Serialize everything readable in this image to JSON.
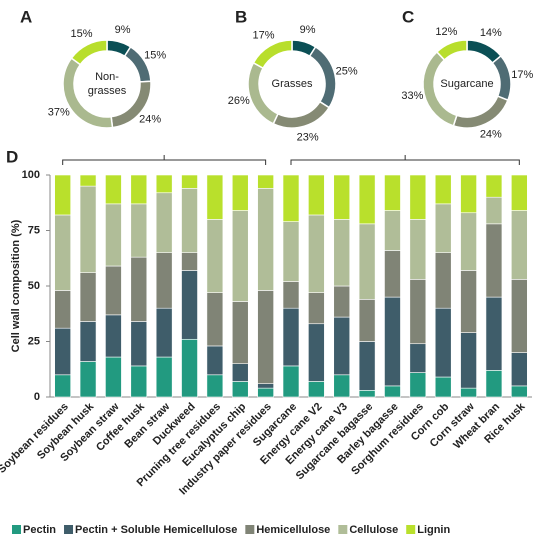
{
  "chart_data": [
    {
      "type": "pie",
      "title": "A",
      "center_label": [
        "Non-",
        "grasses"
      ],
      "values": [
        9,
        15,
        24,
        37,
        15
      ],
      "value_labels": [
        "9%",
        "15%",
        "24%",
        "37%",
        "15%"
      ],
      "colors": [
        "#0b4f55",
        "#4f6c74",
        "#858a74",
        "#aab98f",
        "#b8de2c"
      ]
    },
    {
      "type": "pie",
      "title": "B",
      "center_label": [
        "Grasses"
      ],
      "values": [
        9,
        25,
        23,
        26,
        17
      ],
      "value_labels": [
        "9%",
        "25%",
        "23%",
        "26%",
        "17%"
      ],
      "colors": [
        "#0b4f55",
        "#4f6c74",
        "#858a74",
        "#aab98f",
        "#b8de2c"
      ]
    },
    {
      "type": "pie",
      "title": "C",
      "center_label": [
        "Sugarcane"
      ],
      "values": [
        14,
        17,
        24,
        33,
        12
      ],
      "value_labels": [
        "14%",
        "17%",
        "24%",
        "33%",
        "12%"
      ],
      "colors": [
        "#0b4f55",
        "#4f6c74",
        "#858a74",
        "#aab98f",
        "#b8de2c"
      ]
    },
    {
      "type": "bar",
      "stacked": true,
      "title": "D",
      "ylabel": "Cell wall composition (%)",
      "legend": "bottom",
      "ylim": [
        0,
        100
      ],
      "yticks": [
        0,
        25,
        50,
        75,
        100
      ],
      "categories": [
        "Soybean residues",
        "Soybean husk",
        "Soybean straw",
        "Coffee husk",
        "Bean straw",
        "Duckweed",
        "Pruning tree residues",
        "Eucalyptus chip",
        "Industry paper residues",
        "Sugarcane",
        "Energy cane V2",
        "Energy cane V3",
        "Sugarcane bagasse",
        "Barley bagasse",
        "Sorghum residues",
        "Corn cob",
        "Corn straw",
        "Wheat bran",
        "Rice husk"
      ],
      "series": [
        {
          "name": "Pectin",
          "color": "#229a80",
          "values": [
            10,
            16,
            18,
            14,
            18,
            26,
            10,
            7,
            4,
            14,
            7,
            10,
            3,
            5,
            11,
            9,
            4,
            12,
            5
          ]
        },
        {
          "name": "Pectin + Soluble Hemicellulose",
          "color": "#3f5d6a",
          "values": [
            21,
            18,
            19,
            20,
            22,
            31,
            13,
            8,
            2,
            26,
            26,
            26,
            22,
            40,
            13,
            31,
            25,
            33,
            15
          ]
        },
        {
          "name": "Hemicellulose",
          "color": "#808476",
          "values": [
            17,
            22,
            22,
            29,
            25,
            8,
            24,
            28,
            42,
            12,
            14,
            14,
            19,
            21,
            29,
            25,
            28,
            33,
            33
          ]
        },
        {
          "name": "Cellulose",
          "color": "#b0bd98",
          "values": [
            34,
            39,
            28,
            24,
            27,
            29,
            33,
            41,
            46,
            27,
            35,
            30,
            34,
            18,
            27,
            22,
            26,
            12,
            31
          ]
        },
        {
          "name": "Lignin",
          "color": "#b9e02c",
          "values": [
            18,
            5,
            13,
            13,
            8,
            6,
            20,
            16,
            6,
            21,
            18,
            20,
            22,
            16,
            20,
            13,
            17,
            10,
            16
          ]
        }
      ]
    }
  ]
}
